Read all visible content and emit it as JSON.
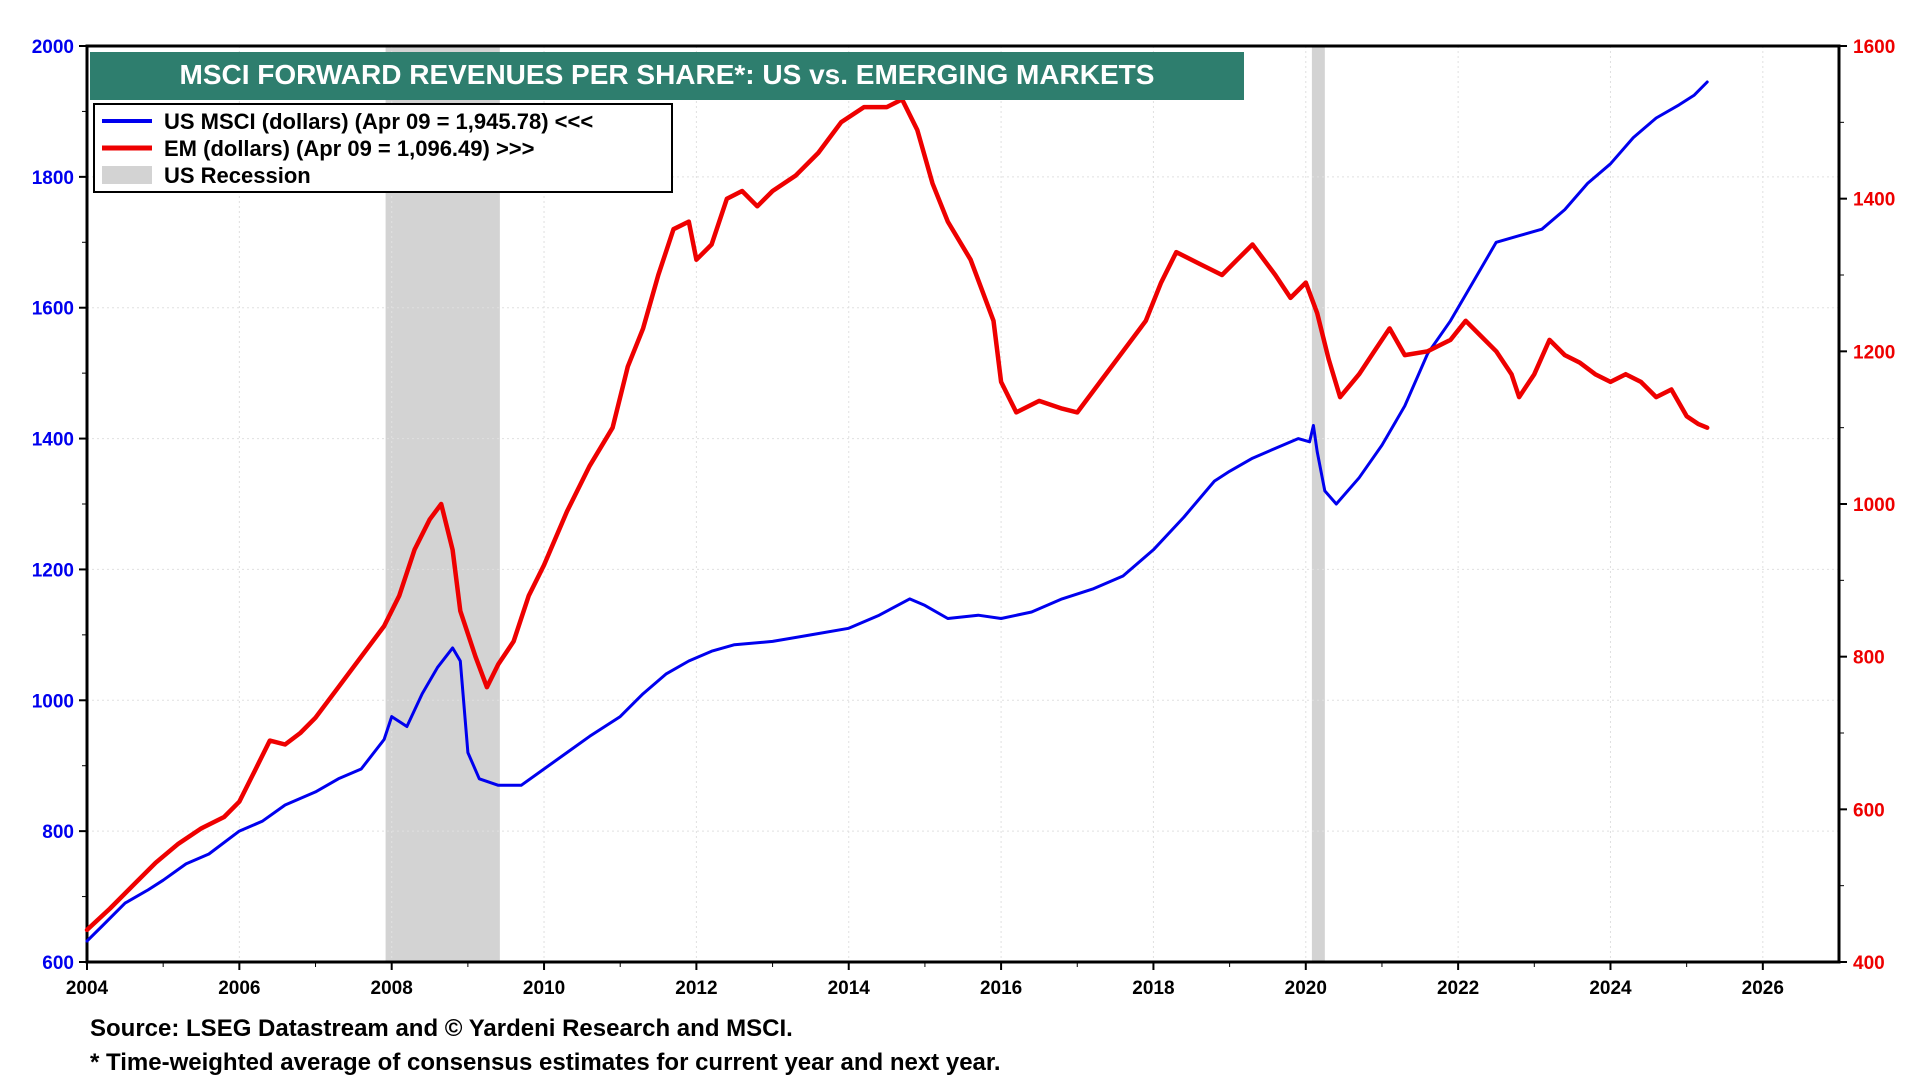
{
  "chart_data": {
    "type": "line",
    "title": "MSCI FORWARD REVENUES PER SHARE*: US vs. EMERGING MARKETS",
    "xlim": [
      2004,
      2027
    ],
    "x_ticks": [
      "2004",
      "2006",
      "2008",
      "2010",
      "2012",
      "2014",
      "2016",
      "2018",
      "2020",
      "2022",
      "2024",
      "2026"
    ],
    "y_left": {
      "min": 600,
      "max": 2000,
      "ticks": [
        "600",
        "800",
        "1000",
        "1200",
        "1400",
        "1600",
        "1800",
        "2000"
      ],
      "color": "#0000ee"
    },
    "y_right": {
      "min": 400,
      "max": 1600,
      "ticks": [
        "400",
        "600",
        "800",
        "1000",
        "1200",
        "1400",
        "1600"
      ],
      "color": "#ee0000"
    },
    "legend": {
      "position": "top-left",
      "items": [
        {
          "label": "US MSCI (dollars) (Apr 09 = 1,945.78) <<<",
          "color": "#0000ee",
          "kind": "line"
        },
        {
          "label": "EM (dollars) (Apr 09 = 1,096.49) >>>",
          "color": "#ee0000",
          "kind": "line"
        },
        {
          "label": "US Recession",
          "color": "#d3d3d3",
          "kind": "box"
        }
      ]
    },
    "recessions": [
      {
        "start": 2007.92,
        "end": 2009.42
      },
      {
        "start": 2020.08,
        "end": 2020.25
      }
    ],
    "series": [
      {
        "name": "US MSCI (dollars)",
        "axis": "left",
        "color": "#0000ee",
        "points": [
          [
            2004.0,
            632
          ],
          [
            2004.2,
            655
          ],
          [
            2004.5,
            690
          ],
          [
            2004.8,
            710
          ],
          [
            2005.0,
            725
          ],
          [
            2005.3,
            750
          ],
          [
            2005.6,
            765
          ],
          [
            2006.0,
            800
          ],
          [
            2006.3,
            815
          ],
          [
            2006.6,
            840
          ],
          [
            2007.0,
            860
          ],
          [
            2007.3,
            880
          ],
          [
            2007.6,
            895
          ],
          [
            2007.9,
            940
          ],
          [
            2008.0,
            975
          ],
          [
            2008.2,
            960
          ],
          [
            2008.4,
            1010
          ],
          [
            2008.6,
            1050
          ],
          [
            2008.8,
            1080
          ],
          [
            2008.9,
            1060
          ],
          [
            2009.0,
            920
          ],
          [
            2009.15,
            880
          ],
          [
            2009.4,
            870
          ],
          [
            2009.7,
            870
          ],
          [
            2010.0,
            895
          ],
          [
            2010.3,
            920
          ],
          [
            2010.6,
            945
          ],
          [
            2011.0,
            975
          ],
          [
            2011.3,
            1010
          ],
          [
            2011.6,
            1040
          ],
          [
            2011.9,
            1060
          ],
          [
            2012.2,
            1075
          ],
          [
            2012.5,
            1085
          ],
          [
            2013.0,
            1090
          ],
          [
            2013.5,
            1100
          ],
          [
            2014.0,
            1110
          ],
          [
            2014.4,
            1130
          ],
          [
            2014.8,
            1155
          ],
          [
            2015.0,
            1145
          ],
          [
            2015.3,
            1125
          ],
          [
            2015.7,
            1130
          ],
          [
            2016.0,
            1125
          ],
          [
            2016.4,
            1135
          ],
          [
            2016.8,
            1155
          ],
          [
            2017.2,
            1170
          ],
          [
            2017.6,
            1190
          ],
          [
            2018.0,
            1230
          ],
          [
            2018.4,
            1280
          ],
          [
            2018.8,
            1335
          ],
          [
            2019.0,
            1350
          ],
          [
            2019.3,
            1370
          ],
          [
            2019.6,
            1385
          ],
          [
            2019.9,
            1400
          ],
          [
            2020.05,
            1395
          ],
          [
            2020.1,
            1420
          ],
          [
            2020.15,
            1380
          ],
          [
            2020.25,
            1320
          ],
          [
            2020.4,
            1300
          ],
          [
            2020.7,
            1340
          ],
          [
            2021.0,
            1390
          ],
          [
            2021.3,
            1450
          ],
          [
            2021.6,
            1530
          ],
          [
            2021.9,
            1580
          ],
          [
            2022.2,
            1640
          ],
          [
            2022.5,
            1700
          ],
          [
            2022.8,
            1710
          ],
          [
            2023.1,
            1720
          ],
          [
            2023.4,
            1750
          ],
          [
            2023.7,
            1790
          ],
          [
            2024.0,
            1820
          ],
          [
            2024.3,
            1860
          ],
          [
            2024.6,
            1890
          ],
          [
            2024.9,
            1910
          ],
          [
            2025.1,
            1925
          ],
          [
            2025.27,
            1945
          ]
        ]
      },
      {
        "name": "EM (dollars)",
        "axis": "right",
        "color": "#ee0000",
        "points": [
          [
            2004.0,
            442
          ],
          [
            2004.3,
            470
          ],
          [
            2004.6,
            500
          ],
          [
            2004.9,
            530
          ],
          [
            2005.2,
            555
          ],
          [
            2005.5,
            575
          ],
          [
            2005.8,
            590
          ],
          [
            2006.0,
            610
          ],
          [
            2006.2,
            650
          ],
          [
            2006.4,
            690
          ],
          [
            2006.6,
            685
          ],
          [
            2006.8,
            700
          ],
          [
            2007.0,
            720
          ],
          [
            2007.3,
            760
          ],
          [
            2007.6,
            800
          ],
          [
            2007.9,
            840
          ],
          [
            2008.1,
            880
          ],
          [
            2008.3,
            940
          ],
          [
            2008.5,
            980
          ],
          [
            2008.65,
            1000
          ],
          [
            2008.8,
            940
          ],
          [
            2008.9,
            860
          ],
          [
            2009.1,
            800
          ],
          [
            2009.25,
            760
          ],
          [
            2009.4,
            790
          ],
          [
            2009.6,
            820
          ],
          [
            2009.8,
            880
          ],
          [
            2010.0,
            920
          ],
          [
            2010.3,
            990
          ],
          [
            2010.6,
            1050
          ],
          [
            2010.9,
            1100
          ],
          [
            2011.1,
            1180
          ],
          [
            2011.3,
            1230
          ],
          [
            2011.5,
            1300
          ],
          [
            2011.7,
            1360
          ],
          [
            2011.9,
            1370
          ],
          [
            2012.0,
            1320
          ],
          [
            2012.2,
            1340
          ],
          [
            2012.4,
            1400
          ],
          [
            2012.6,
            1410
          ],
          [
            2012.8,
            1390
          ],
          [
            2013.0,
            1410
          ],
          [
            2013.3,
            1430
          ],
          [
            2013.6,
            1460
          ],
          [
            2013.9,
            1500
          ],
          [
            2014.2,
            1520
          ],
          [
            2014.5,
            1520
          ],
          [
            2014.7,
            1530
          ],
          [
            2014.9,
            1490
          ],
          [
            2015.1,
            1420
          ],
          [
            2015.3,
            1370
          ],
          [
            2015.6,
            1320
          ],
          [
            2015.9,
            1240
          ],
          [
            2016.0,
            1160
          ],
          [
            2016.2,
            1120
          ],
          [
            2016.5,
            1135
          ],
          [
            2016.8,
            1125
          ],
          [
            2017.0,
            1120
          ],
          [
            2017.3,
            1160
          ],
          [
            2017.6,
            1200
          ],
          [
            2017.9,
            1240
          ],
          [
            2018.1,
            1290
          ],
          [
            2018.3,
            1330
          ],
          [
            2018.6,
            1315
          ],
          [
            2018.9,
            1300
          ],
          [
            2019.1,
            1320
          ],
          [
            2019.3,
            1340
          ],
          [
            2019.6,
            1300
          ],
          [
            2019.8,
            1270
          ],
          [
            2020.0,
            1290
          ],
          [
            2020.15,
            1250
          ],
          [
            2020.3,
            1190
          ],
          [
            2020.45,
            1140
          ],
          [
            2020.7,
            1170
          ],
          [
            2020.9,
            1200
          ],
          [
            2021.1,
            1230
          ],
          [
            2021.3,
            1195
          ],
          [
            2021.6,
            1200
          ],
          [
            2021.9,
            1215
          ],
          [
            2022.1,
            1240
          ],
          [
            2022.3,
            1220
          ],
          [
            2022.5,
            1200
          ],
          [
            2022.7,
            1170
          ],
          [
            2022.8,
            1140
          ],
          [
            2023.0,
            1170
          ],
          [
            2023.2,
            1215
          ],
          [
            2023.4,
            1195
          ],
          [
            2023.6,
            1185
          ],
          [
            2023.8,
            1170
          ],
          [
            2024.0,
            1160
          ],
          [
            2024.2,
            1170
          ],
          [
            2024.4,
            1160
          ],
          [
            2024.6,
            1140
          ],
          [
            2024.8,
            1150
          ],
          [
            2025.0,
            1115
          ],
          [
            2025.15,
            1105
          ],
          [
            2025.27,
            1100
          ]
        ]
      }
    ]
  },
  "footnotes": {
    "source": "Source: LSEG Datastream and © Yardeni Research and MSCI.",
    "asterisk": "* Time-weighted average of consensus estimates for current year and next year."
  }
}
